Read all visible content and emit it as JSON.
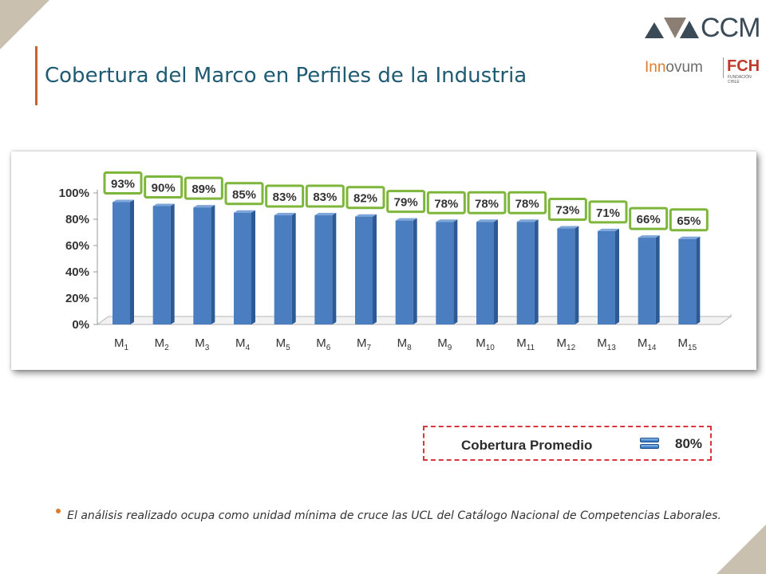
{
  "slide": {
    "title": "Cobertura del Marco en Perfiles de la Industria",
    "logo_ccm_text": "CCM",
    "logo_innovum_part1": "Inn",
    "logo_innovum_part2": "ovum",
    "logo_fch_text": "FCH",
    "logo_fch_subtitle": "FUNDACIÓN CHILE",
    "accent_color": "#c8612b",
    "title_color": "#1f5a73"
  },
  "chart_data": {
    "type": "bar",
    "categories": [
      "M1",
      "M2",
      "M3",
      "M4",
      "M5",
      "M6",
      "M7",
      "M8",
      "M9",
      "M10",
      "M11",
      "M12",
      "M13",
      "M14",
      "M15"
    ],
    "category_subscripts": [
      {
        "base": "M",
        "sub": "1"
      },
      {
        "base": "M",
        "sub": "2"
      },
      {
        "base": "M",
        "sub": "3"
      },
      {
        "base": "M",
        "sub": "4"
      },
      {
        "base": "M",
        "sub": "5"
      },
      {
        "base": "M",
        "sub": "6"
      },
      {
        "base": "M",
        "sub": "7"
      },
      {
        "base": "M",
        "sub": "8"
      },
      {
        "base": "M",
        "sub": "9"
      },
      {
        "base": "M",
        "sub": "10"
      },
      {
        "base": "M",
        "sub": "11"
      },
      {
        "base": "M",
        "sub": "12"
      },
      {
        "base": "M",
        "sub": "13"
      },
      {
        "base": "M",
        "sub": "14"
      },
      {
        "base": "M",
        "sub": "15"
      }
    ],
    "values": [
      93,
      90,
      89,
      85,
      83,
      83,
      82,
      79,
      78,
      78,
      78,
      73,
      71,
      66,
      65
    ],
    "data_labels": [
      "93%",
      "90%",
      "89%",
      "85%",
      "83%",
      "83%",
      "82%",
      "79%",
      "78%",
      "78%",
      "78%",
      "73%",
      "71%",
      "66%",
      "65%"
    ],
    "y_ticks": [
      "0%",
      "20%",
      "40%",
      "60%",
      "80%",
      "100%"
    ],
    "y_tick_values": [
      0,
      20,
      40,
      60,
      80,
      100
    ],
    "ylim": [
      0,
      100
    ],
    "grid": false,
    "bar_color": "#4a7ec0",
    "label_border_color": "#7db63a",
    "title": "",
    "xlabel": "",
    "ylabel": ""
  },
  "average": {
    "label": "Cobertura Promedio",
    "value": "80%",
    "border_color": "#d9363e"
  },
  "note": {
    "text": "El análisis realizado ocupa como unidad mínima de cruce las UCL del Catálogo Nacional de Competencias Laborales.",
    "bullet_color": "#e07b2c"
  }
}
